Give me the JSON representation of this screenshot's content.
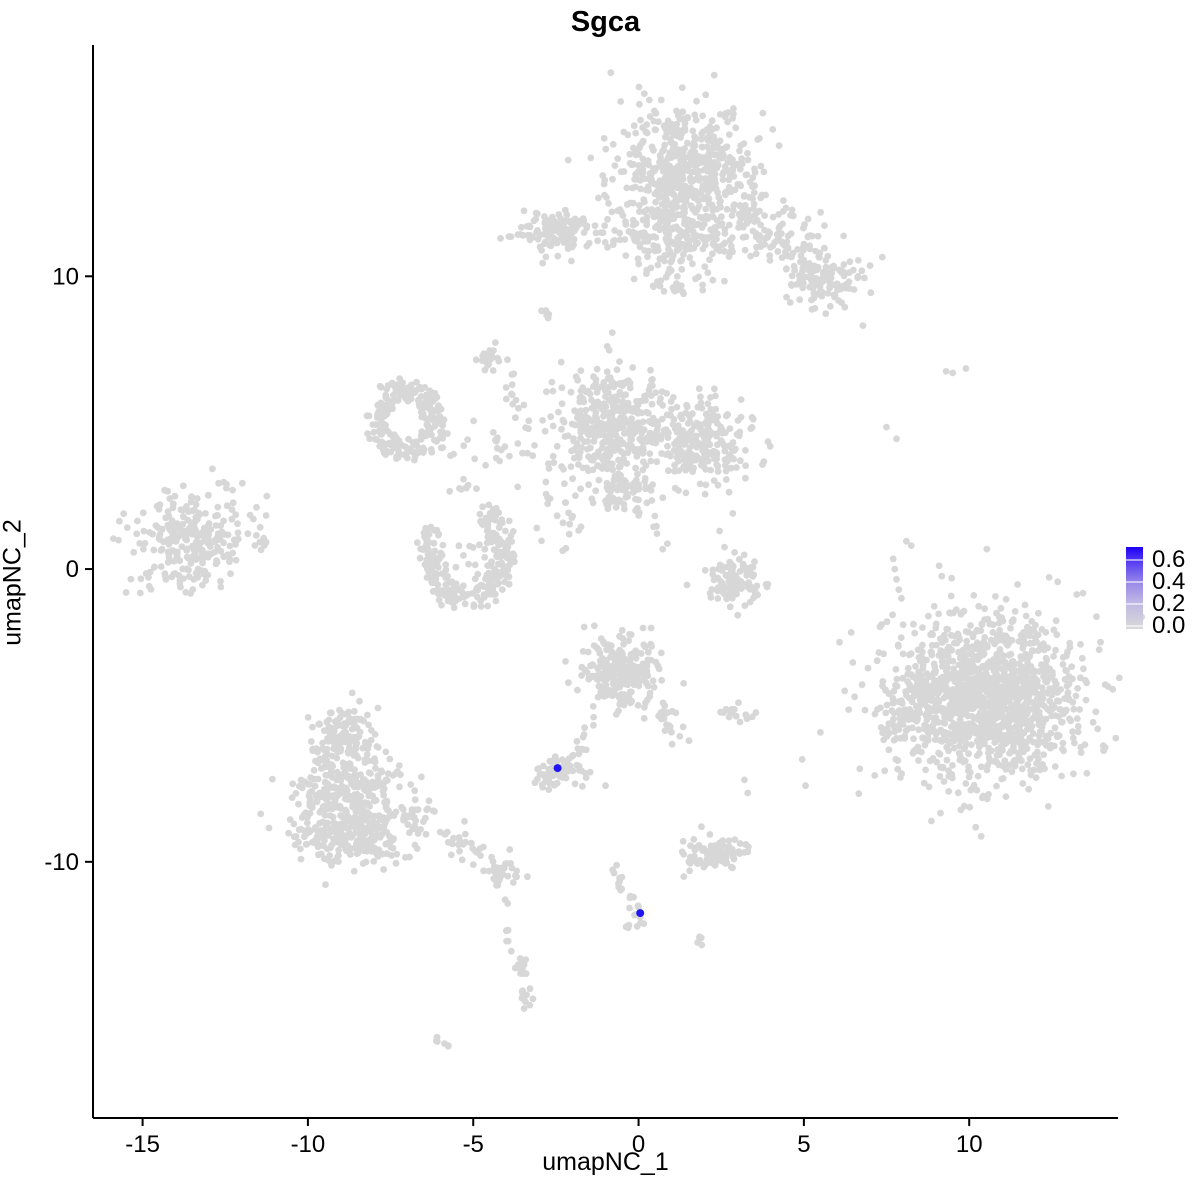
{
  "chart_data": {
    "type": "scatter",
    "title": "Sgca",
    "xlabel": "umapNC_1",
    "ylabel": "umapNC_2",
    "xlim": [
      -16.5,
      14.5
    ],
    "ylim": [
      -18.75,
      17.9
    ],
    "x_ticks": [
      "-15",
      "-10",
      "-5",
      "0",
      "5",
      "10"
    ],
    "x_tick_values": [
      -15,
      -10,
      -5,
      0,
      5,
      10
    ],
    "y_ticks": [
      "10",
      "0",
      "-10"
    ],
    "y_tick_values": [
      10,
      0,
      -10
    ],
    "grid": false,
    "point_color": "#D7D7D7",
    "highlight_color": "#0D00F5",
    "legend": {
      "position": "right",
      "tick_labels": [
        "0.6",
        "0.4",
        "0.2",
        "0.0"
      ],
      "tick_values": [
        0.6,
        0.4,
        0.2,
        0.0
      ],
      "scale_max": 0.72,
      "low_color": "#D9D9D9",
      "high_color": "#0D00F5"
    },
    "expressing_cells": [
      {
        "x": -2.45,
        "y": -6.8,
        "value": 0.65
      },
      {
        "x": 0.05,
        "y": -11.75,
        "value": 0.65
      }
    ],
    "clusters": [
      {
        "type": "gauss",
        "cx": 1.4,
        "cy": 13.5,
        "rx": 2.1,
        "ry": 2.4,
        "n": 600
      },
      {
        "type": "gauss",
        "cx": 1.2,
        "cy": 11.3,
        "rx": 1.6,
        "ry": 0.9,
        "n": 120
      },
      {
        "type": "strand",
        "pts": [
          [
            3.0,
            12.2
          ],
          [
            4.6,
            11.0
          ],
          [
            6.2,
            9.6
          ]
        ],
        "n": 160,
        "jitter": 0.55
      },
      {
        "type": "gauss",
        "cx": 5.5,
        "cy": 9.8,
        "rx": 0.9,
        "ry": 0.8,
        "n": 70
      },
      {
        "type": "gauss",
        "cx": 0.9,
        "cy": 9.8,
        "rx": 1.1,
        "ry": 0.8,
        "n": 30
      },
      {
        "type": "gauss",
        "cx": -2.45,
        "cy": 11.5,
        "rx": 1.2,
        "ry": 0.8,
        "n": 120
      },
      {
        "type": "strand",
        "pts": [
          [
            -1.3,
            11.5
          ],
          [
            0.3,
            11.3
          ]
        ],
        "n": 22,
        "jitter": 0.22
      },
      {
        "type": "points",
        "pts": [
          [
            -3.5,
            11.4
          ],
          [
            -3.35,
            11.4
          ],
          [
            -2.9,
            10.45
          ]
        ]
      },
      {
        "type": "strand",
        "pts": [
          [
            -3.0,
            9.0
          ],
          [
            -2.55,
            8.35
          ]
        ],
        "n": 5,
        "jitter": 0.06
      },
      {
        "type": "gauss",
        "cx": -4.55,
        "cy": 7.2,
        "rx": 0.4,
        "ry": 0.5,
        "n": 22
      },
      {
        "type": "strand",
        "pts": [
          [
            -4.0,
            7.3
          ],
          [
            -3.8,
            5.9
          ],
          [
            -3.3,
            4.6
          ]
        ],
        "n": 16,
        "jitter": 0.12
      },
      {
        "type": "ring",
        "cx": -7.05,
        "cy": 5.1,
        "rx": 1.25,
        "ry": 1.4,
        "inner": 0.45,
        "a0": 0,
        "a1": 360,
        "n": 210
      },
      {
        "type": "strand",
        "pts": [
          [
            -6.2,
            3.6
          ],
          [
            -4.9,
            2.6
          ]
        ],
        "n": 10,
        "jitter": 0.25
      },
      {
        "type": "gauss",
        "cx": -0.85,
        "cy": 4.85,
        "rx": 1.5,
        "ry": 1.85,
        "n": 420
      },
      {
        "type": "gauss",
        "cx": 1.85,
        "cy": 4.3,
        "rx": 1.4,
        "ry": 1.35,
        "n": 260
      },
      {
        "type": "strand",
        "pts": [
          [
            -5.8,
            4.3
          ],
          [
            -4.2,
            4.0
          ],
          [
            -2.5,
            3.9
          ]
        ],
        "n": 30,
        "jitter": 0.45
      },
      {
        "type": "gauss",
        "cx": -0.5,
        "cy": 2.55,
        "rx": 0.8,
        "ry": 0.7,
        "n": 60
      },
      {
        "type": "gauss",
        "cx": -2.2,
        "cy": 1.8,
        "rx": 0.9,
        "ry": 1.0,
        "n": 22
      },
      {
        "type": "strand",
        "pts": [
          [
            0.0,
            2.1
          ],
          [
            0.85,
            0.8
          ]
        ],
        "n": 9,
        "jitter": 0.1
      },
      {
        "type": "arc",
        "cx": -5.15,
        "cy": 0.55,
        "rx": 1.45,
        "ry": 1.95,
        "inner": 0.55,
        "a0": 150,
        "a1": 430,
        "n": 240
      },
      {
        "type": "gauss",
        "cx": -5.1,
        "cy": 0.3,
        "rx": 0.9,
        "ry": 1.0,
        "n": 25
      },
      {
        "type": "gauss",
        "cx": -13.5,
        "cy": 1.0,
        "rx": 1.65,
        "ry": 1.6,
        "n": 270
      },
      {
        "type": "gauss",
        "cx": -11.6,
        "cy": 1.4,
        "rx": 0.5,
        "ry": 1.1,
        "n": 10
      },
      {
        "type": "points",
        "pts": [
          [
            -15.5,
            -0.8
          ]
        ]
      },
      {
        "type": "points",
        "pts": [
          [
            9.3,
            6.75
          ],
          [
            9.5,
            6.7
          ],
          [
            9.9,
            6.85
          ],
          [
            7.5,
            4.85
          ],
          [
            7.8,
            4.45
          ],
          [
            8.1,
            0.95
          ],
          [
            8.25,
            0.8
          ],
          [
            7.7,
            0.35
          ],
          [
            7.75,
            0.0
          ],
          [
            7.8,
            -0.35
          ],
          [
            7.87,
            -0.7
          ],
          [
            7.95,
            -1.0
          ],
          [
            8.0,
            -1.9
          ]
        ]
      },
      {
        "type": "gauss",
        "cx": 2.95,
        "cy": -0.45,
        "rx": 0.95,
        "ry": 0.85,
        "n": 110
      },
      {
        "type": "points",
        "pts": [
          [
            2.45,
            1.3
          ],
          [
            2.6,
            0.75
          ],
          [
            2.85,
            1.9
          ]
        ]
      },
      {
        "type": "gauss",
        "cx": 10.6,
        "cy": -4.6,
        "rx": 2.6,
        "ry": 2.6,
        "n": 900
      },
      {
        "type": "gauss",
        "cx": 10.4,
        "cy": -4.2,
        "rx": 3.0,
        "ry": 2.9,
        "n": 500
      },
      {
        "type": "gauss",
        "cx": 8.1,
        "cy": -5.0,
        "rx": 0.7,
        "ry": 1.0,
        "n": 60
      },
      {
        "type": "gauss",
        "cx": -0.5,
        "cy": -3.5,
        "rx": 1.15,
        "ry": 1.15,
        "n": 230
      },
      {
        "type": "strand",
        "pts": [
          [
            0.55,
            -4.6
          ],
          [
            1.3,
            -5.9
          ]
        ],
        "n": 20,
        "jitter": 0.18
      },
      {
        "type": "strand",
        "pts": [
          [
            -1.25,
            -4.9
          ],
          [
            -1.8,
            -6.3
          ]
        ],
        "n": 10,
        "jitter": 0.1
      },
      {
        "type": "gauss",
        "cx": -2.4,
        "cy": -6.9,
        "rx": 0.85,
        "ry": 0.6,
        "n": 60
      },
      {
        "type": "points",
        "pts": [
          [
            -1.0,
            -7.4
          ]
        ]
      },
      {
        "type": "gauss",
        "cx": 2.85,
        "cy": -4.85,
        "rx": 0.5,
        "ry": 0.28,
        "n": 16
      },
      {
        "type": "points",
        "pts": [
          [
            3.55,
            -4.9
          ],
          [
            3.2,
            -7.2
          ],
          [
            3.3,
            -7.65
          ],
          [
            4.95,
            -6.5
          ],
          [
            5.05,
            -7.4
          ]
        ]
      },
      {
        "type": "gauss",
        "cx": 2.3,
        "cy": -9.75,
        "rx": 1.05,
        "ry": 0.5,
        "n": 90
      },
      {
        "type": "points",
        "pts": [
          [
            1.9,
            -8.8
          ],
          [
            1.35,
            -9.3
          ]
        ]
      },
      {
        "type": "strand",
        "pts": [
          [
            -0.9,
            -10.0
          ],
          [
            -0.4,
            -11.1
          ],
          [
            0.05,
            -11.75
          ],
          [
            -0.3,
            -12.35
          ]
        ],
        "n": 26,
        "jitter": 0.12
      },
      {
        "type": "strand",
        "pts": [
          [
            1.8,
            -12.45
          ],
          [
            1.95,
            -12.9
          ]
        ],
        "n": 5,
        "jitter": 0.06
      },
      {
        "type": "gauss",
        "cx": -8.9,
        "cy": -5.8,
        "rx": 1.0,
        "ry": 1.1,
        "n": 130
      },
      {
        "type": "gauss",
        "cx": -8.8,
        "cy": -7.4,
        "rx": 1.5,
        "ry": 1.2,
        "n": 230
      },
      {
        "type": "gauss",
        "cx": -8.7,
        "cy": -9.0,
        "rx": 1.95,
        "ry": 1.1,
        "n": 280
      },
      {
        "type": "strand",
        "pts": [
          [
            -7.0,
            -8.3
          ],
          [
            -5.15,
            -9.4
          ],
          [
            -4.05,
            -10.45
          ]
        ],
        "n": 55,
        "jitter": 0.3
      },
      {
        "type": "gauss",
        "cx": -4.1,
        "cy": -10.4,
        "rx": 0.45,
        "ry": 0.45,
        "n": 30
      },
      {
        "type": "strand",
        "pts": [
          [
            -4.05,
            -11.1
          ],
          [
            -3.85,
            -13.0
          ]
        ],
        "n": 6,
        "jitter": 0.08
      },
      {
        "type": "strand",
        "pts": [
          [
            -3.6,
            -13.3
          ],
          [
            -3.35,
            -15.1
          ]
        ],
        "n": 22,
        "jitter": 0.12
      },
      {
        "type": "strand",
        "pts": [
          [
            -6.1,
            -16.0
          ],
          [
            -5.7,
            -16.35
          ]
        ],
        "n": 6,
        "jitter": 0.05
      }
    ]
  }
}
